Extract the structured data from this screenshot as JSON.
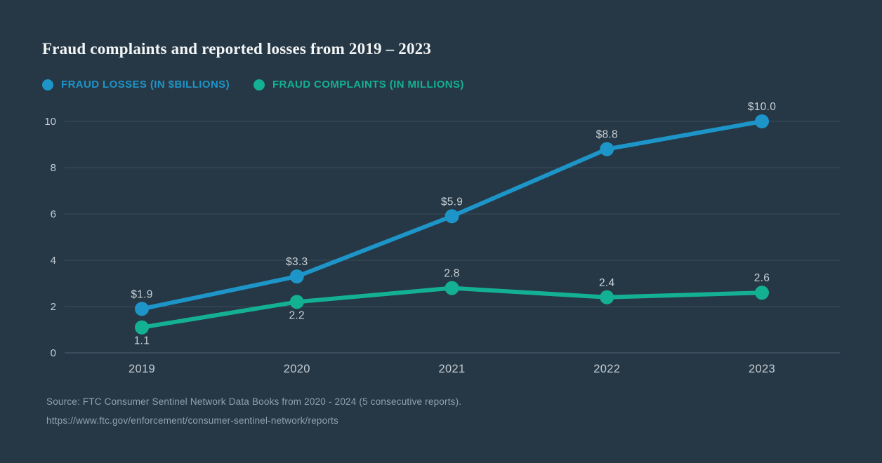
{
  "title": "Fraud complaints and reported losses from 2019 – 2023",
  "chart_data": {
    "type": "line",
    "title": "Fraud complaints and reported losses from 2019 – 2023",
    "categories": [
      "2019",
      "2020",
      "2021",
      "2022",
      "2023"
    ],
    "series": [
      {
        "name": "FRAUD LOSSES (IN $BILLIONS)",
        "values": [
          1.9,
          3.3,
          5.9,
          8.8,
          10.0
        ],
        "point_labels": [
          "$1.9",
          "$3.3",
          "$5.9",
          "$8.8",
          "$10.0"
        ],
        "label_position": [
          "above",
          "above",
          "above",
          "above",
          "above"
        ],
        "color": "#1d95c9"
      },
      {
        "name": "FRAUD COMPLAINTS (IN MILLIONS)",
        "values": [
          1.1,
          2.2,
          2.8,
          2.4,
          2.6
        ],
        "point_labels": [
          "1.1",
          "2.2",
          "2.8",
          "2.4",
          "2.6"
        ],
        "label_position": [
          "below",
          "below",
          "above",
          "above",
          "above"
        ],
        "color": "#14b094"
      }
    ],
    "xlabel": "",
    "ylabel": "",
    "ylim": [
      0,
      10
    ],
    "yticks": [
      0,
      2,
      4,
      6,
      8,
      10
    ],
    "grid": true,
    "legend_position": "top"
  },
  "source": {
    "line1": "Source: FTC Consumer Sentinel Network Data Books from 2020 - 2024 (5 consecutive reports).",
    "line2": "https://www.ftc.gov/enforcement/consumer-sentinel-network/reports"
  },
  "colors": {
    "background": "#263845",
    "title_text": "#f3f5f6",
    "gridline": "#3b4d5b",
    "zero_line": "#506273",
    "tick_text": "#c3cbd2",
    "data_label_text": "#c9d0d6",
    "source_text": "#92a1ad"
  }
}
